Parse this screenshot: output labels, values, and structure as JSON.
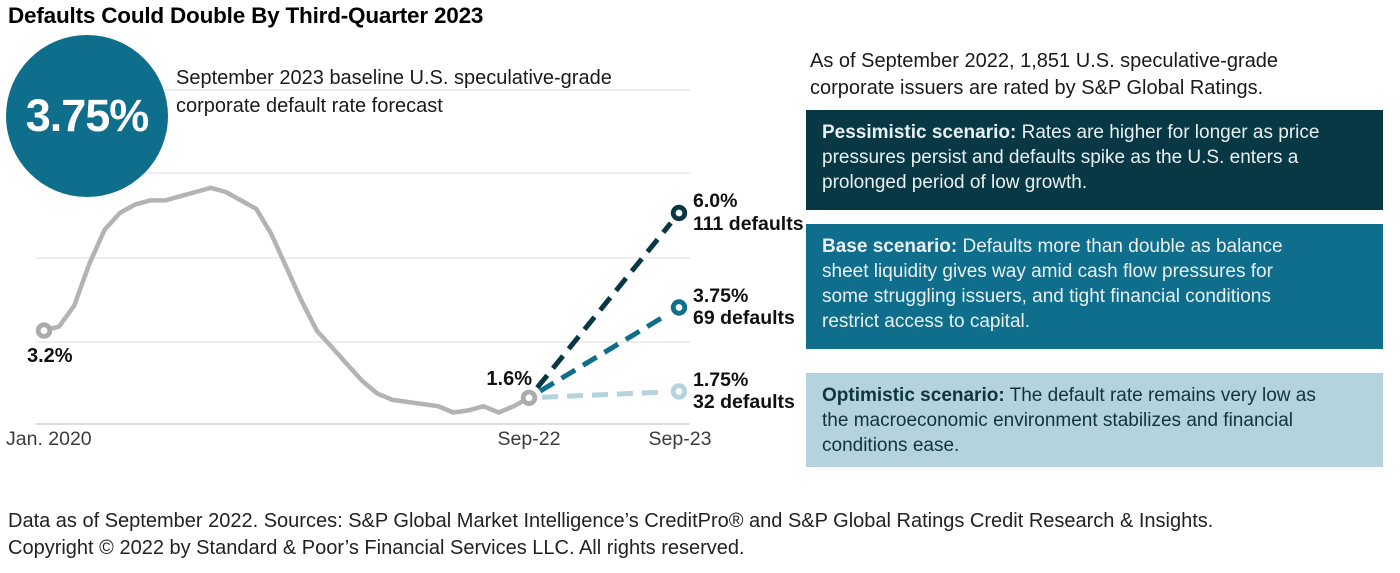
{
  "title": "Defaults Could Double By Third-Quarter 2023",
  "badge": {
    "value": "3.75%"
  },
  "colors": {
    "navy": "#073844",
    "teal": "#0E6E8C",
    "light_blue": "#B4D3DD",
    "history_gray": "#B3B3B3",
    "gridline": "#E4E4E4"
  },
  "chart": {
    "subtitle_lines": [
      "September 2023 baseline U.S. speculative-grade",
      "corporate default rate forecast"
    ],
    "start_point_label": "3.2%",
    "current_point_label": "1.6%",
    "x_ticks": [
      "Jan. 2020",
      "Sep-22",
      "Sep-23"
    ]
  },
  "chart_data": {
    "type": "line",
    "title": "September 2023 baseline U.S. speculative-grade corporate default rate forecast",
    "unit": "percent",
    "grid": "horizontal",
    "x": [
      "Jan-20",
      "Feb-20",
      "Mar-20",
      "Apr-20",
      "May-20",
      "Jun-20",
      "Jul-20",
      "Aug-20",
      "Sep-20",
      "Oct-20",
      "Nov-20",
      "Dec-20",
      "Jan-21",
      "Feb-21",
      "Mar-21",
      "Apr-21",
      "May-21",
      "Jun-21",
      "Jul-21",
      "Aug-21",
      "Sep-21",
      "Oct-21",
      "Nov-21",
      "Dec-21",
      "Jan-22",
      "Feb-22",
      "Mar-22",
      "Apr-22",
      "May-22",
      "Jun-22",
      "Jul-22",
      "Aug-22",
      "Sep-22"
    ],
    "series": [
      {
        "name": "U.S. speculative-grade corporate default rate",
        "values": [
          3.2,
          3.3,
          3.8,
          4.8,
          5.6,
          6.0,
          6.2,
          6.3,
          6.3,
          6.4,
          6.5,
          6.6,
          6.5,
          6.3,
          6.1,
          5.5,
          4.7,
          3.9,
          3.2,
          2.8,
          2.4,
          2.0,
          1.7,
          1.55,
          1.5,
          1.45,
          1.4,
          1.25,
          1.3,
          1.4,
          1.25,
          1.4,
          1.6
        ]
      }
    ],
    "point_labels": [
      {
        "x": "Jan-20",
        "value": 3.2,
        "label": "3.2%"
      },
      {
        "x": "Sep-22",
        "value": 1.6,
        "label": "1.6%"
      }
    ],
    "forecasts": [
      {
        "scenario": "Pessimistic",
        "x": "Sep-23",
        "value": 6.0,
        "label": "6.0%",
        "defaults": 111,
        "defaults_label": "111 defaults",
        "color": "#073844"
      },
      {
        "scenario": "Base",
        "x": "Sep-23",
        "value": 3.75,
        "label": "3.75%",
        "defaults": 69,
        "defaults_label": "69 defaults",
        "color": "#0E6E8C"
      },
      {
        "scenario": "Optimistic",
        "x": "Sep-23",
        "value": 1.75,
        "label": "1.75%",
        "defaults": 32,
        "defaults_label": "32 defaults",
        "color": "#B4D3DD"
      }
    ],
    "x_ticks_shown": [
      "Jan. 2020",
      "Sep-22",
      "Sep-23"
    ]
  },
  "panel": {
    "intro_lines": [
      "As of September 2022, 1,851 U.S. speculative-grade",
      "corporate issuers are rated by S&P Global Ratings."
    ],
    "scenarios": [
      {
        "label": "Pessimistic scenario:",
        "lines": [
          "Rates are higher for longer as price",
          "pressures persist and defaults spike as the U.S. enters a",
          "prolonged period of low growth."
        ],
        "bg": "#073844",
        "fg": "#E9F0F2"
      },
      {
        "label": "Base scenario:",
        "lines": [
          "Defaults more than double as balance",
          "sheet liquidity gives way amid cash flow pressures for",
          "some struggling issuers, and tight financial conditions",
          "restrict access to capital."
        ],
        "bg": "#0E6E8C",
        "fg": "#E9F0F2"
      },
      {
        "label": "Optimistic scenario:",
        "lines": [
          "The default rate remains very low as",
          "the macroeconomic environment stabilizes and financial",
          "conditions ease."
        ],
        "bg": "#B4D3DD",
        "fg": "#0F3440"
      }
    ]
  },
  "footer_lines": [
    "Data as of September 2022. Sources: S&P Global Market Intelligence’s CreditPro® and S&P Global Ratings Credit Research & Insights.",
    "Copyright © 2022 by Standard & Poor’s Financial Services LLC. All rights reserved."
  ]
}
